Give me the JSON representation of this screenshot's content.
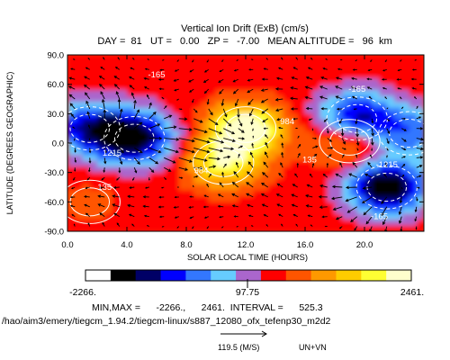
{
  "chart_data": {
    "type": "heatmap",
    "title": "Vertical Ion Drift (ExB) (cm/s)",
    "subtitle": "DAY =  81   UT =   0.00   ZP =   -7.00   MEAN ALTITUDE =   96  km",
    "xlabel": "SOLAR LOCAL TIME (HOURS)",
    "ylabel": "LATITUDE (DEGREES GEOGRAPHIC)",
    "xlim": [
      0,
      24
    ],
    "ylim": [
      -90,
      90
    ],
    "x_ticks": [
      "0.0",
      "4.0",
      "8.0",
      "12.0",
      "16.0",
      "20.0"
    ],
    "y_ticks": [
      "90.0",
      "60.0",
      "30.0",
      "0.0",
      "-30.0",
      "-60.0",
      "-90.0"
    ],
    "colorbar": {
      "min_label": "-2266.",
      "mid_label": "97.75",
      "max_label": "2461.",
      "colors": [
        "#ffffff",
        "#000000",
        "#000066",
        "#0000ff",
        "#3377ff",
        "#66ccff",
        "#aa66cc",
        "#ff0000",
        "#ff5500",
        "#ff9900",
        "#ffcc00",
        "#ffff33",
        "#ffffcc"
      ]
    },
    "min": -2266,
    "max": 2461,
    "interval": 525.3,
    "stats_text": "MIN,MAX =      -2266.,      2461.  INTERVAL =      525.3",
    "path_text": "/hao/aim3/emery/tiegcm_1.94.2/tiegcm-linux/s887_12080_ofx_tefenp30_m2d2",
    "vector_label": "119.5 (M/S)",
    "vector_key": "UN+VN",
    "vector_ref_speed": 119.5,
    "contour_labels": [
      {
        "text": "-165",
        "x": 6.0,
        "y": 70
      },
      {
        "text": "-165",
        "x": 19.5,
        "y": 55
      },
      {
        "text": "1215",
        "x": 3.0,
        "y": -10
      },
      {
        "text": "-1215",
        "x": 21.5,
        "y": -22
      },
      {
        "text": "135",
        "x": 2.5,
        "y": -45
      },
      {
        "text": "984",
        "x": 9.0,
        "y": -28
      },
      {
        "text": "984",
        "x": 14.8,
        "y": 22
      },
      {
        "text": "135",
        "x": 16.3,
        "y": -17
      },
      {
        "text": "-165",
        "x": 21.0,
        "y": -75
      }
    ],
    "field_features": [
      {
        "x": 12.0,
        "y": 15,
        "value": 2461
      },
      {
        "x": 10.5,
        "y": -20,
        "value": 1900
      },
      {
        "x": 19.0,
        "y": 2,
        "value": 1500
      },
      {
        "x": 4.5,
        "y": 5,
        "value": -2100
      },
      {
        "x": 1.5,
        "y": 15,
        "value": -1400
      },
      {
        "x": 21.5,
        "y": -45,
        "value": -2266
      },
      {
        "x": 19.5,
        "y": 25,
        "value": -1800
      },
      {
        "x": 1.5,
        "y": -60,
        "value": 600
      },
      {
        "x": 23.0,
        "y": 10,
        "value": -900
      }
    ]
  }
}
